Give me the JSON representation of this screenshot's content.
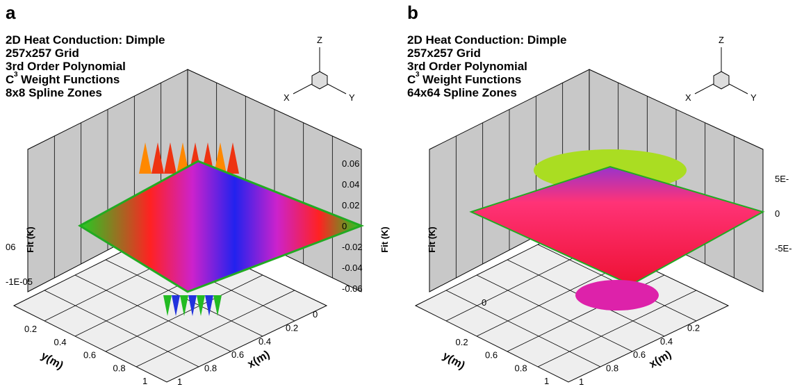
{
  "panels": [
    {
      "label": "a",
      "title": "2D Heat Conduction: Dimple",
      "grid": "257x257 Grid",
      "order": "3rd Order Polynomial",
      "weight": {
        "base": "C",
        "sup": "3",
        "text": "Weight Functions"
      },
      "zones": "8x8 Spline Zones",
      "triad": {
        "z": "Z",
        "x": "X",
        "y": "Y"
      },
      "z_label": "Fit (K)",
      "z_ticks": [
        "0.06",
        "0.04",
        "0.02",
        "0",
        "-0.02",
        "-0.04",
        "-0.06"
      ],
      "left_fragments": [
        "06",
        "-1E-05"
      ],
      "x_label": "x(m)",
      "x_ticks": [
        "0",
        "0.2",
        "0.4",
        "0.6",
        "0.8",
        "1"
      ],
      "y_label": "y(m)",
      "y_ticks": [
        "0.2",
        "0.4",
        "0.6",
        "0.8",
        "1"
      ]
    },
    {
      "label": "b",
      "title": "2D Heat Conduction: Dimple",
      "grid": "257x257 Grid",
      "order": "3rd Order Polynomial",
      "weight": {
        "base": "C",
        "sup": "3",
        "text": "Weight Functions"
      },
      "zones": "64x64 Spline Zones",
      "triad": {
        "z": "Z",
        "x": "X",
        "y": "Y"
      },
      "z_label": "Fit (K)",
      "z_ticks": [
        "5E-",
        "0",
        "-5E-"
      ],
      "left_fragments": [
        "0"
      ],
      "x_label": "x(m)",
      "x_ticks": [
        "0.2",
        "0.4",
        "0.6",
        "0.8",
        "1"
      ],
      "y_label": "y(m)",
      "y_ticks": [
        "0.2",
        "0.6",
        "0.8",
        "1"
      ]
    }
  ]
}
